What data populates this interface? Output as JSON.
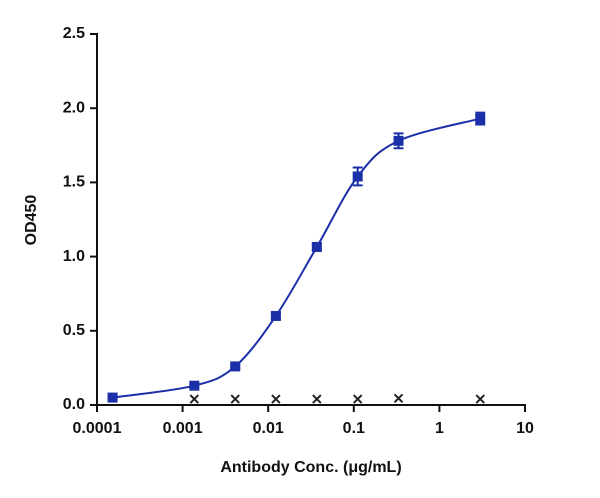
{
  "chart_data": {
    "type": "scatter",
    "x_label": "Antibody Conc. (μg/mL)",
    "y_label": "OD450",
    "x_log": true,
    "xlim": [
      0.0001,
      10
    ],
    "xticks": [
      0.0001,
      0.001,
      0.01,
      0.1,
      1,
      10
    ],
    "ylim": [
      0,
      2.5
    ],
    "yticks": [
      {
        "value": 0,
        "label": "0.0"
      },
      0.5,
      {
        "value": 1,
        "label": "1.0"
      },
      1.5,
      {
        "value": 2,
        "label": "2.0"
      },
      2.5
    ],
    "series": [
      {
        "color": "#1a2fa8",
        "marker": "square",
        "fit_curve": true,
        "x": [
          0.000152,
          0.00137,
          0.00412,
          0.0123,
          0.037,
          0.111,
          0.333,
          3
        ],
        "values": [
          0.05,
          0.13,
          0.26,
          0.6,
          1.065,
          1.54,
          1.78,
          1.93
        ],
        "errors": [
          0.01,
          0.01,
          0.01,
          0.02,
          0.02,
          0.06,
          0.05,
          0.04
        ]
      },
      {
        "color": "#222222",
        "marker": "x",
        "fit_curve": false,
        "x": [
          0.00137,
          0.00412,
          0.0123,
          0.037,
          0.111,
          0.333,
          3
        ],
        "values": [
          0.04,
          0.04,
          0.04,
          0.04,
          0.04,
          0.045,
          0.04
        ]
      }
    ]
  }
}
